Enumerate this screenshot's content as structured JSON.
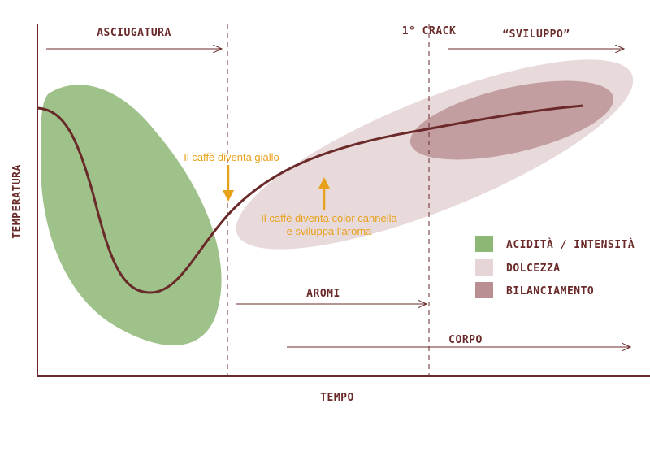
{
  "axes": {
    "y_label": "TEMPERATURA",
    "x_label": "TEMPO"
  },
  "phases": {
    "drying": "ASCIUGATURA",
    "first_crack": "1° CRACK",
    "development": "“SVILUPPO”"
  },
  "annotations": {
    "yellow": "Il caffè diventa giallo",
    "cinnamon": [
      "Il caffè diventa color cannella",
      "e sviluppa l’aroma"
    ]
  },
  "spans": {
    "aromas": "AROMI",
    "body": "CORPO"
  },
  "legend": [
    "ACIDITÀ / INTENSITÀ",
    "DOLCEZZA",
    "BILANCIAMENTO"
  ]
}
